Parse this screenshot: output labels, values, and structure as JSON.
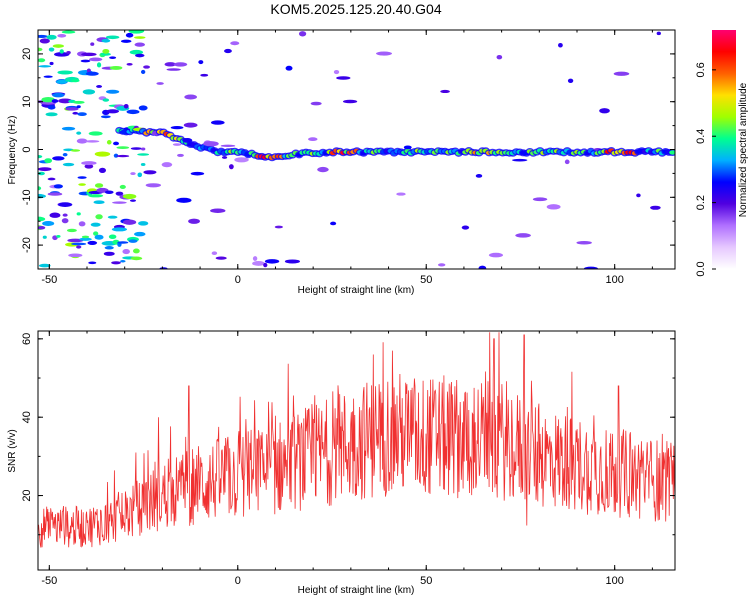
{
  "title": "KOM5.2025.125.20.40.G04",
  "colors": {
    "snr_line": "#f03030",
    "spectrum_ramp": [
      "#ffffff",
      "#e6c8ff",
      "#b070ff",
      "#5000e0",
      "#0000ff",
      "#00b0ff",
      "#00ff90",
      "#a0ff00",
      "#ffe000",
      "#ff6000",
      "#ff0000",
      "#ff0070"
    ]
  },
  "chart_data": [
    {
      "type": "heatmap",
      "xlabel": "Height of straight line (km)",
      "ylabel": "Frequency (Hz)",
      "xlim": [
        -53,
        116
      ],
      "ylim": [
        -25,
        25
      ],
      "x_ticks": [
        "-50",
        "0",
        "50",
        "100"
      ],
      "y_ticks": [
        "20",
        "10",
        "0",
        "-10",
        "-20"
      ],
      "grid": false,
      "colorbar": {
        "label": "Normalized spectral amplitude",
        "range": [
          0,
          0.72
        ],
        "ticks": [
          "0.0",
          "0.2",
          "0.4",
          "0.6"
        ]
      },
      "ridge": [
        {
          "x": -30,
          "y": 4
        },
        {
          "x": -20,
          "y": 3.5
        },
        {
          "x": -15,
          "y": 2
        },
        {
          "x": -10,
          "y": 0.5
        },
        {
          "x": -5,
          "y": -0.5
        },
        {
          "x": 0,
          "y": -0.5
        },
        {
          "x": 5,
          "y": -1.2
        },
        {
          "x": 10,
          "y": -1.5
        },
        {
          "x": 15,
          "y": -1
        },
        {
          "x": 25,
          "y": -0.5
        },
        {
          "x": 50,
          "y": -0.5
        },
        {
          "x": 75,
          "y": -0.5
        },
        {
          "x": 100,
          "y": -0.5
        },
        {
          "x": 116,
          "y": -0.5
        }
      ]
    },
    {
      "type": "line",
      "xlabel": "Height of straight line (km)",
      "ylabel": "SNR (v/v)",
      "xlim": [
        -53,
        116
      ],
      "ylim": [
        1,
        62
      ],
      "x_ticks": [
        "-50",
        "0",
        "50",
        "100"
      ],
      "y_ticks": [
        "60",
        "40",
        "20"
      ],
      "grid": false,
      "series": [
        {
          "trend": [
            {
              "x": -53,
              "y": 12
            },
            {
              "x": -40,
              "y": 12
            },
            {
              "x": -30,
              "y": 15
            },
            {
              "x": -20,
              "y": 20
            },
            {
              "x": -10,
              "y": 23
            },
            {
              "x": 0,
              "y": 25
            },
            {
              "x": 10,
              "y": 27
            },
            {
              "x": 20,
              "y": 30
            },
            {
              "x": 30,
              "y": 33
            },
            {
              "x": 40,
              "y": 36
            },
            {
              "x": 50,
              "y": 35
            },
            {
              "x": 60,
              "y": 35
            },
            {
              "x": 70,
              "y": 34
            },
            {
              "x": 80,
              "y": 30
            },
            {
              "x": 90,
              "y": 28
            },
            {
              "x": 100,
              "y": 26
            },
            {
              "x": 116,
              "y": 23
            }
          ],
          "peaks": [
            {
              "x": -27,
              "y": 31
            },
            {
              "x": -21,
              "y": 40
            },
            {
              "x": -13,
              "y": 48
            },
            {
              "x": 36,
              "y": 56
            },
            {
              "x": 41,
              "y": 57
            },
            {
              "x": 68,
              "y": 60
            },
            {
              "x": 76,
              "y": 61
            },
            {
              "x": 101,
              "y": 48
            }
          ]
        }
      ]
    }
  ]
}
